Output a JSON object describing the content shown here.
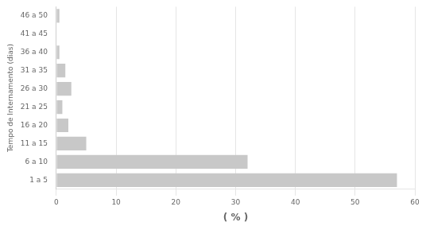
{
  "chart_data": {
    "type": "bar",
    "orientation": "horizontal",
    "categories": [
      "1 a 5",
      "6 a 10",
      "11 a 15",
      "16 a 20",
      "21 a 25",
      "26 a 30",
      "31 a 35",
      "36 a 40",
      "41 a 45",
      "46 a 50"
    ],
    "values": [
      57.0,
      32.0,
      5.0,
      2.0,
      1.0,
      2.5,
      1.5,
      0.5,
      0.0,
      0.5
    ],
    "color": "#c8c8c8",
    "xlabel": "( % )",
    "ylabel": "Tempo de Internamento (dias)",
    "xlim": [
      0,
      60
    ],
    "xticks": [
      0,
      10,
      20,
      30,
      40,
      50,
      60
    ],
    "grid": true
  }
}
